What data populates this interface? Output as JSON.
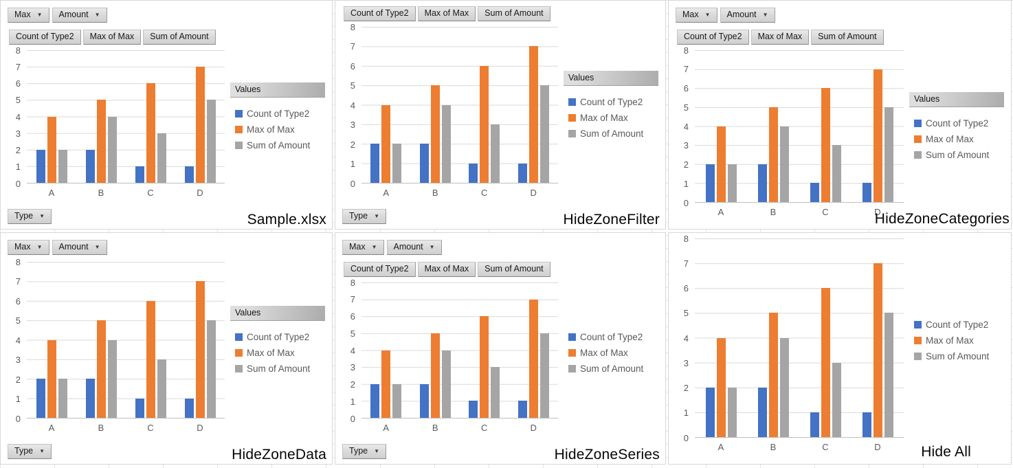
{
  "ui_colors": {
    "series_blue": "#4472C4",
    "series_orange": "#ED7D31",
    "series_gray": "#A5A5A5",
    "axis_text": "#595959",
    "gridline": "#D9D9D9",
    "axis_line": "#BFBFBF",
    "button_face": "#D9D9D9",
    "panel_border": "#D7D7D7",
    "caption_text": "#000000"
  },
  "pivot_buttons": {
    "filter_buttons": [
      {
        "label": "Max",
        "icon": "dropdown-arrow"
      },
      {
        "label": "Amount",
        "icon": "dropdown-arrow"
      }
    ],
    "data_field_buttons": [
      "Count of Type2",
      "Max of Max",
      "Sum of Amount"
    ],
    "axis_field_button": {
      "label": "Type",
      "icon": "dropdown-arrow"
    },
    "legend_header": "Values"
  },
  "chart_data": {
    "type": "bar",
    "title": "",
    "xlabel": "",
    "ylabel": "",
    "categories": [
      "A",
      "B",
      "C",
      "D"
    ],
    "series": [
      {
        "name": "Count of Type2",
        "color": "#4472C4",
        "values": [
          2,
          2,
          1,
          1
        ]
      },
      {
        "name": "Max of Max",
        "color": "#ED7D31",
        "values": [
          4,
          5,
          6,
          7
        ]
      },
      {
        "name": "Sum of Amount",
        "color": "#A5A5A5",
        "values": [
          2,
          4,
          3,
          5
        ]
      }
    ],
    "ylim": [
      0,
      8
    ],
    "yticks": [
      0,
      1,
      2,
      3,
      4,
      5,
      6,
      7,
      8
    ],
    "grid": true,
    "legend_position": "right"
  },
  "panels": [
    {
      "id": "sample",
      "label": "Sample.xlsx",
      "zones": {
        "filter": true,
        "data_fields": true,
        "legend_header": true,
        "axis_field": true
      }
    },
    {
      "id": "hide-zone-filter",
      "label": "HideZoneFilter",
      "zones": {
        "filter": false,
        "data_fields": true,
        "legend_header": true,
        "axis_field": true
      }
    },
    {
      "id": "hide-zone-categories",
      "label": "HideZoneCategories",
      "zones": {
        "filter": true,
        "data_fields": true,
        "legend_header": true,
        "axis_field": false
      }
    },
    {
      "id": "hide-zone-data",
      "label": "HideZoneData",
      "zones": {
        "filter": true,
        "data_fields": false,
        "legend_header": true,
        "axis_field": true
      }
    },
    {
      "id": "hide-zone-series",
      "label": "HideZoneSeries",
      "zones": {
        "filter": true,
        "data_fields": true,
        "legend_header": false,
        "axis_field": true
      }
    },
    {
      "id": "hide-all",
      "label": "Hide All",
      "zones": {
        "filter": false,
        "data_fields": false,
        "legend_header": false,
        "axis_field": false
      }
    }
  ]
}
